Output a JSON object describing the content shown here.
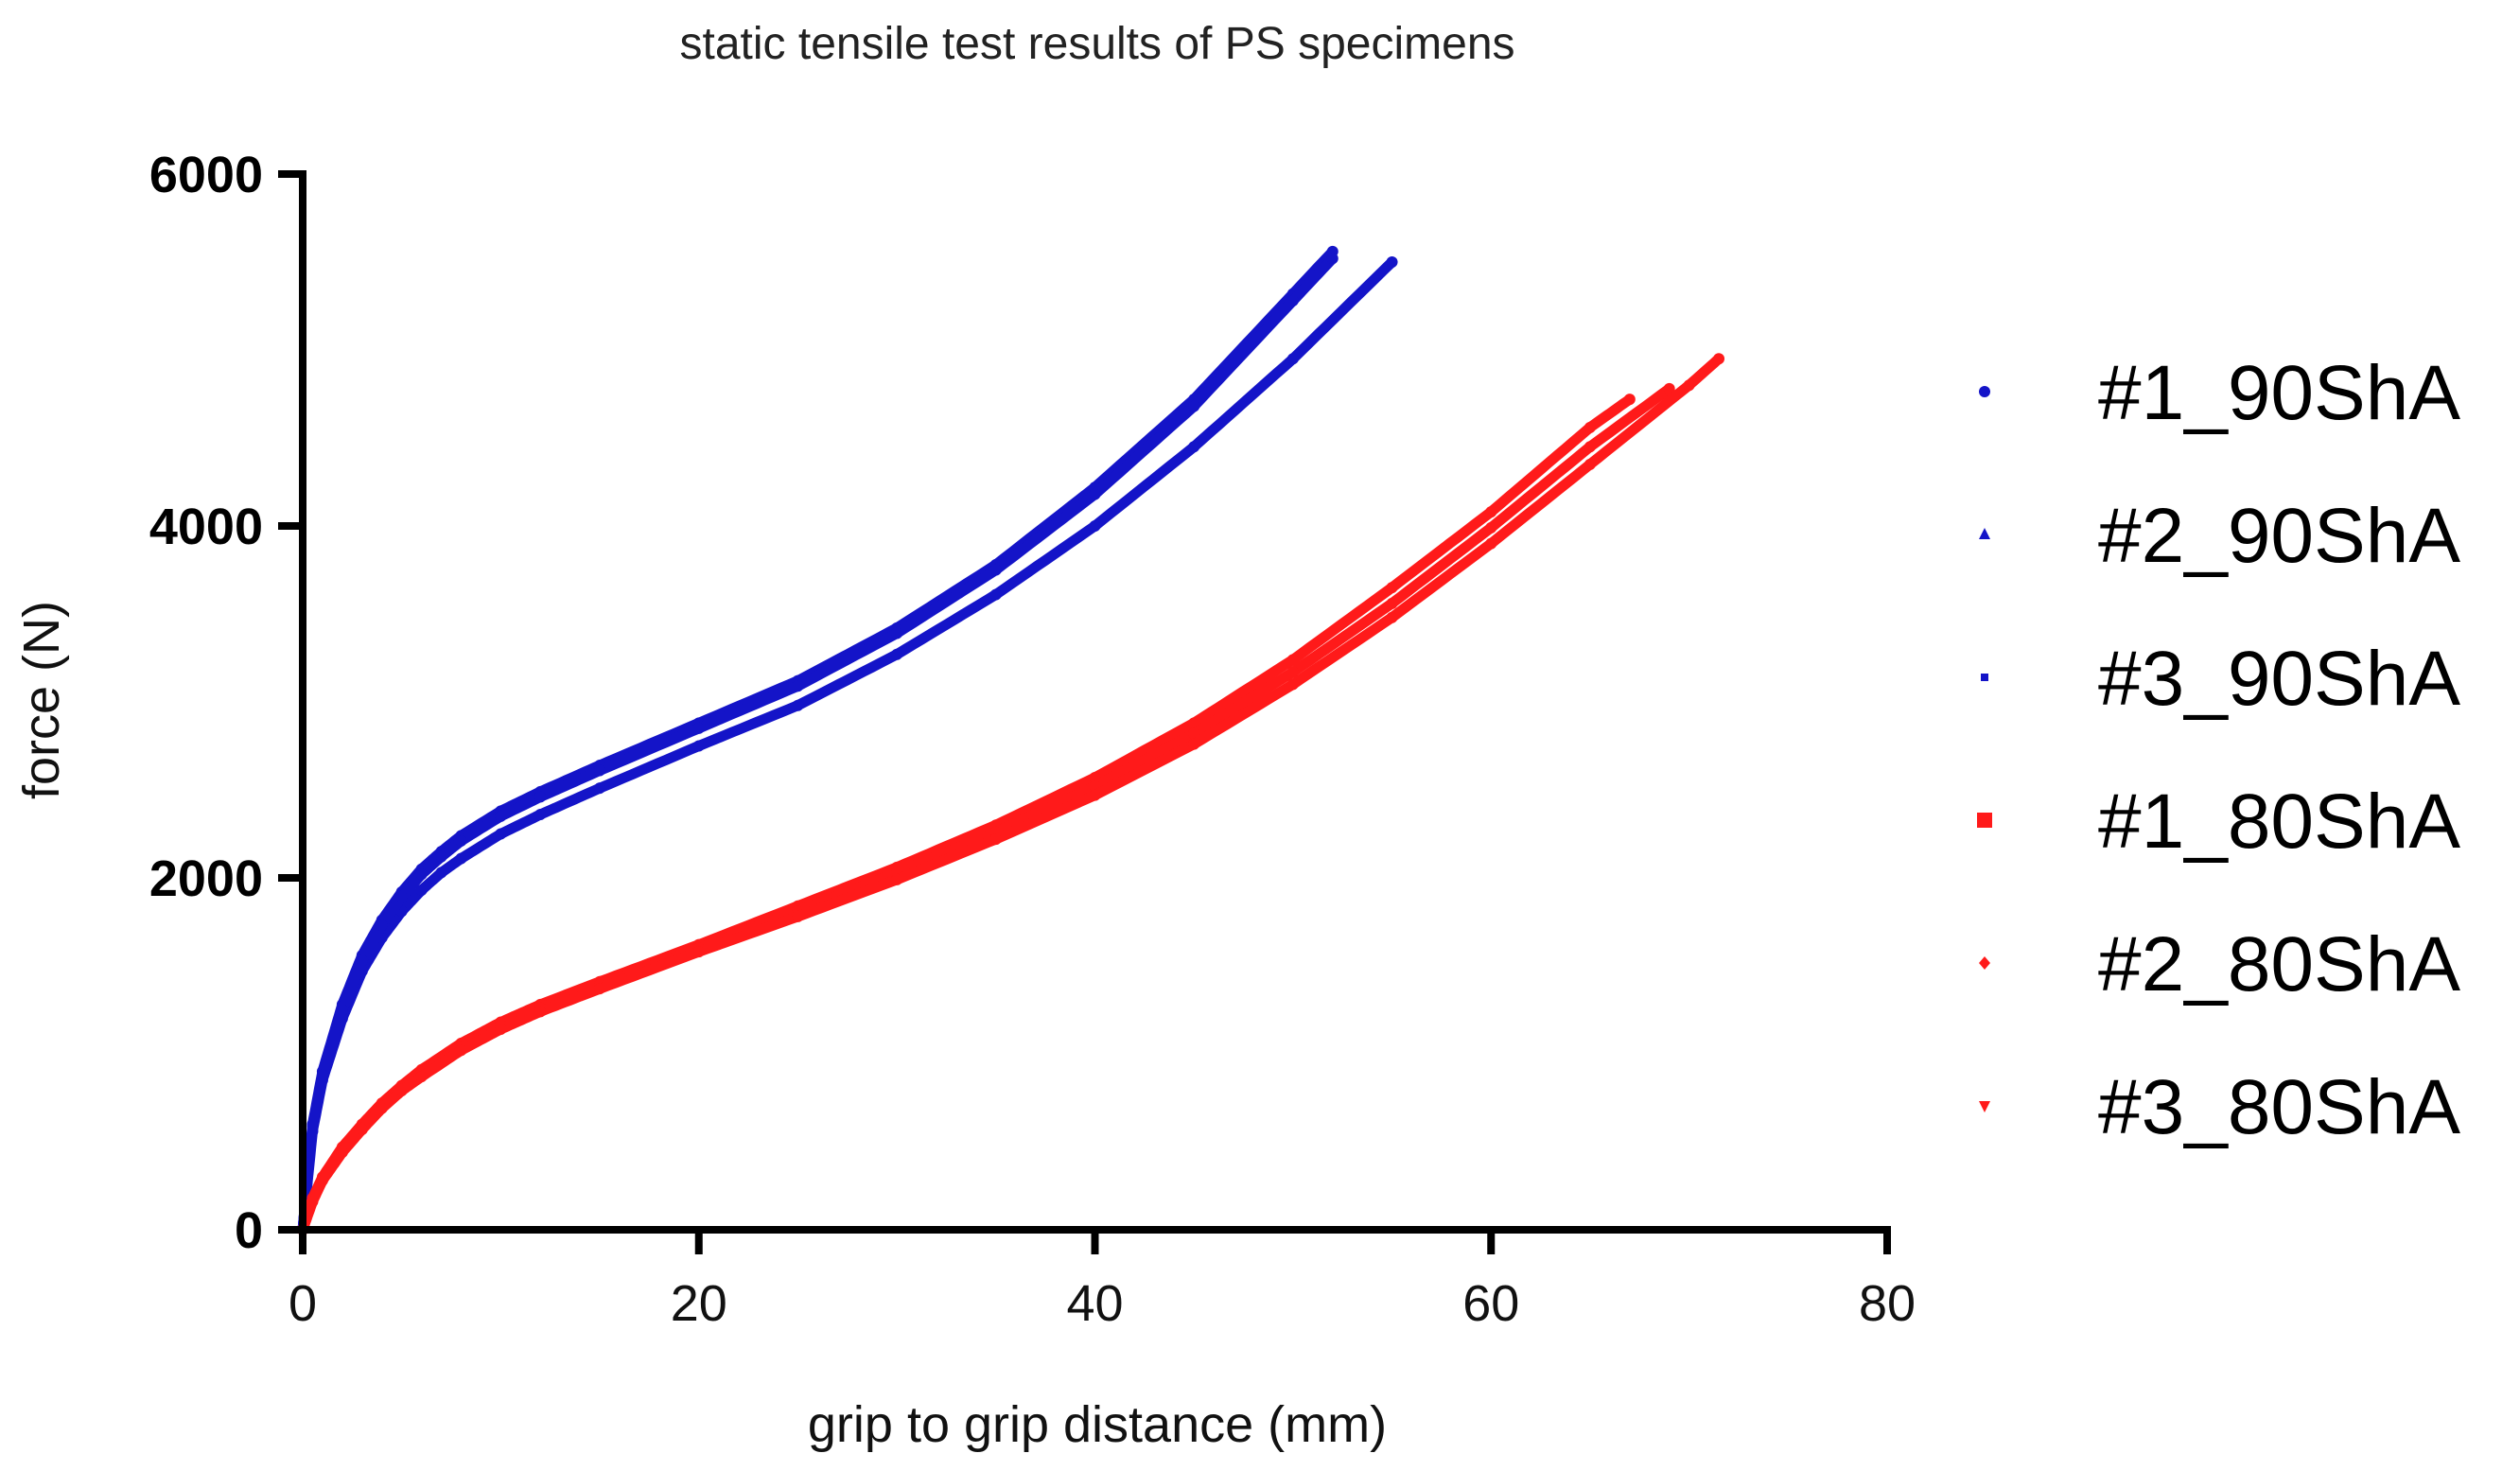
{
  "chart_data": {
    "type": "scatter",
    "title": "static tensile test results of PS specimens",
    "xlabel": "grip to grip distance (mm)",
    "ylabel": "force (N)",
    "xlim": [
      0,
      80
    ],
    "ylim": [
      0,
      6000
    ],
    "x_ticks": [
      "0",
      "20",
      "40",
      "60",
      "80"
    ],
    "y_ticks": [
      "0",
      "2000",
      "4000",
      "6000"
    ],
    "grid": false,
    "legend_position": "right",
    "series": [
      {
        "name": "#1_90ShA",
        "color": "#1414c8",
        "marker": "circle",
        "x": [
          0,
          0.5,
          1,
          2,
          3,
          4,
          5,
          6,
          7,
          8,
          10,
          12,
          15,
          20,
          25,
          30,
          35,
          40,
          45,
          50,
          52
        ],
        "y": [
          0,
          600,
          900,
          1280,
          1560,
          1760,
          1920,
          2050,
          2150,
          2240,
          2380,
          2490,
          2640,
          2880,
          3120,
          3420,
          3780,
          4220,
          4720,
          5320,
          5560
        ]
      },
      {
        "name": "#2_90ShA",
        "color": "#1414c8",
        "marker": "triangle",
        "x": [
          0,
          0.5,
          1,
          2,
          3,
          4,
          5,
          6,
          7,
          8,
          10,
          12,
          15,
          20,
          25,
          30,
          35,
          40,
          45,
          50,
          55
        ],
        "y": [
          0,
          560,
          850,
          1200,
          1470,
          1660,
          1810,
          1930,
          2030,
          2110,
          2250,
          2360,
          2510,
          2750,
          2980,
          3270,
          3610,
          4000,
          4450,
          4950,
          5500
        ]
      },
      {
        "name": "#3_90ShA",
        "color": "#1414c8",
        "marker": "square",
        "x": [
          0,
          0.5,
          1,
          2,
          3,
          4,
          5,
          6,
          7,
          8,
          10,
          12,
          15,
          20,
          25,
          30,
          35,
          40,
          45,
          50,
          52
        ],
        "y": [
          0,
          590,
          880,
          1250,
          1530,
          1730,
          1890,
          2020,
          2120,
          2210,
          2350,
          2460,
          2610,
          2850,
          3090,
          3390,
          3750,
          4180,
          4680,
          5280,
          5520
        ]
      },
      {
        "name": "#1_80ShA",
        "color": "#ff1a1a",
        "marker": "square",
        "x": [
          0,
          0.5,
          1,
          2,
          3,
          4,
          5,
          6,
          8,
          10,
          12,
          15,
          20,
          25,
          30,
          35,
          40,
          45,
          50,
          55,
          60,
          65,
          67
        ],
        "y": [
          0,
          180,
          300,
          470,
          600,
          720,
          820,
          910,
          1060,
          1180,
          1280,
          1410,
          1620,
          1840,
          2060,
          2300,
          2570,
          2880,
          3240,
          3650,
          4080,
          4560,
          4720
        ]
      },
      {
        "name": "#2_80ShA",
        "color": "#ff1a1a",
        "marker": "diamond",
        "x": [
          0,
          0.5,
          1,
          2,
          3,
          4,
          5,
          6,
          8,
          10,
          12,
          15,
          20,
          25,
          30,
          35,
          40,
          45,
          50,
          55,
          60,
          65,
          69
        ],
        "y": [
          0,
          170,
          290,
          450,
          580,
          700,
          800,
          890,
          1040,
          1160,
          1260,
          1390,
          1600,
          1810,
          2030,
          2260,
          2520,
          2820,
          3170,
          3560,
          3990,
          4450,
          4780
        ]
      },
      {
        "name": "#3_80ShA",
        "color": "#ff1a1a",
        "marker": "triangle-down",
        "x": [
          0,
          0.5,
          1,
          2,
          3,
          4,
          5,
          6,
          8,
          10,
          12,
          15,
          20,
          25,
          30,
          35,
          40,
          45,
          50,
          55,
          60,
          65,
          70,
          71.5
        ],
        "y": [
          0,
          160,
          280,
          440,
          570,
          690,
          790,
          870,
          1020,
          1140,
          1240,
          1370,
          1580,
          1780,
          1990,
          2220,
          2470,
          2760,
          3100,
          3480,
          3900,
          4350,
          4800,
          4950
        ]
      }
    ]
  }
}
